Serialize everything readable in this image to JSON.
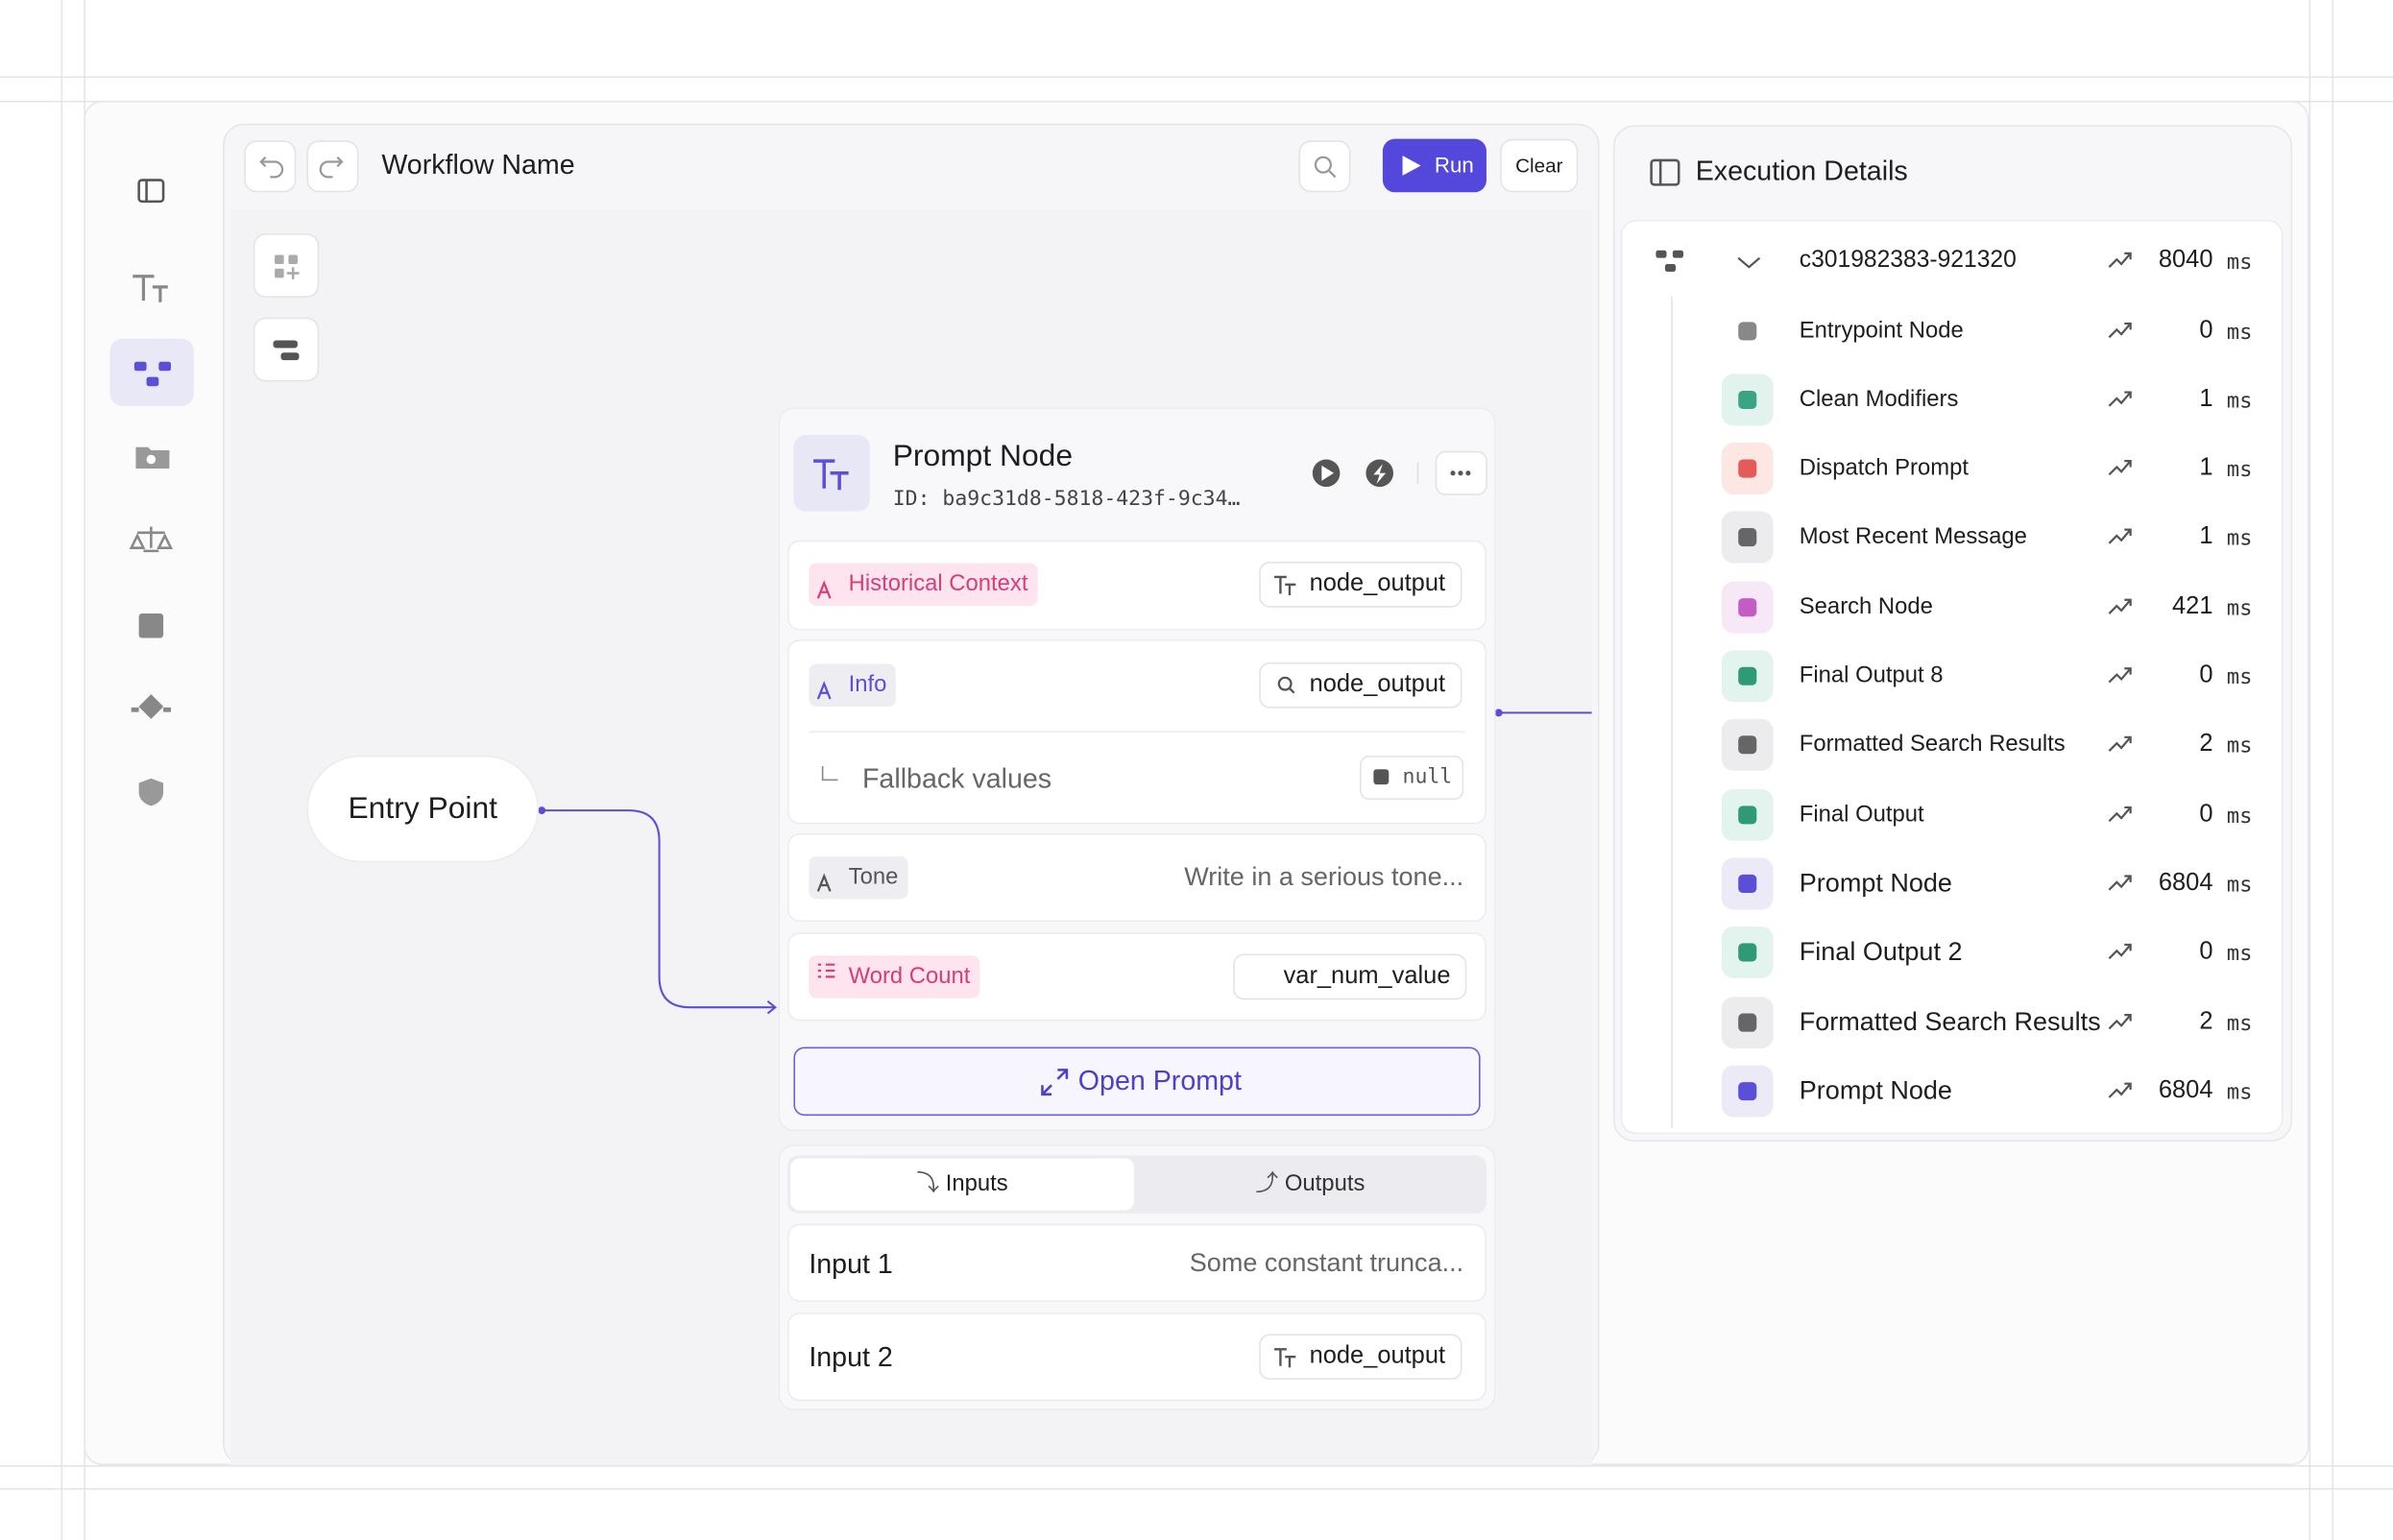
{
  "toolbar": {
    "title": "Workflow Name",
    "run": "Run",
    "clear": "Clear"
  },
  "canvas": {
    "entry": "Entry Point",
    "node": {
      "title": "Prompt Node",
      "id": "ID: ba9c31d8-5818-423f-9c34…",
      "inputs": [
        {
          "name": "Historical Context",
          "value": "node_output"
        },
        {
          "name": "Info",
          "value": "node_output",
          "fallback_label": "Fallback values",
          "fallback_value": "null"
        },
        {
          "name": "Tone",
          "value": "Write in a serious tone..."
        },
        {
          "name": "Word Count",
          "value": "var_num_value"
        }
      ],
      "open": "Open Prompt",
      "tabs": [
        "Inputs",
        "Outputs"
      ],
      "io": [
        {
          "name": "Input 1",
          "value": "Some constant trunca..."
        },
        {
          "name": "Input 2",
          "value": "node_output"
        }
      ]
    }
  },
  "panel": {
    "title": "Execution Details",
    "unit": "ms",
    "root": {
      "label": "c301982383-921320",
      "duration": 8040
    },
    "rows": [
      {
        "label": "Entrypoint Node",
        "duration": 0
      },
      {
        "label": "Clean Modifiers",
        "duration": 1
      },
      {
        "label": "Dispatch Prompt",
        "duration": 1
      },
      {
        "label": "Most Recent Message",
        "duration": 1
      },
      {
        "label": "Search Node",
        "duration": 421
      },
      {
        "label": "Final Output 8",
        "duration": 0
      },
      {
        "label": "Formatted Search Results",
        "duration": 2
      },
      {
        "label": "Final Output",
        "duration": 0
      },
      {
        "label": "Prompt Node",
        "duration": 6804
      },
      {
        "label": "Final Output 2",
        "duration": 0
      },
      {
        "label": "Formatted Search Results",
        "duration": 2
      },
      {
        "label": "Prompt Node",
        "duration": 6804
      }
    ]
  }
}
